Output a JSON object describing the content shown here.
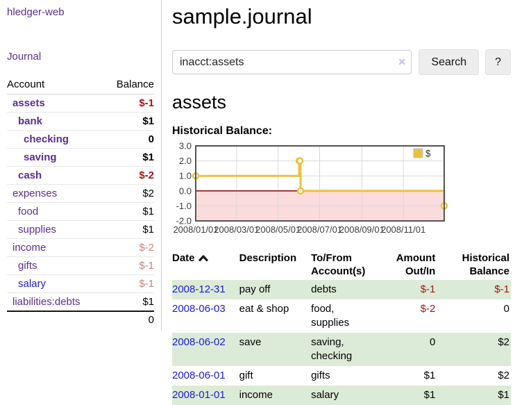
{
  "app": {
    "brand": "hledger-web",
    "nav_journal": "Journal"
  },
  "colors": {
    "link_purple": "#5b2d90",
    "link_blue": "#1b1bd1",
    "negative_strong": "#a01616",
    "negative_soft": "#c08585",
    "row_stripe_green": "#dcebd7",
    "series_gold": "#e8c240",
    "negative_region_pink": "#fadcdc",
    "zero_line_dark_red": "#8b0000",
    "chart_border_gray": "#545454"
  },
  "sidebar": {
    "table_headers": {
      "account": "Account",
      "balance": "Balance"
    },
    "accounts": [
      {
        "name": "assets",
        "indent": 1,
        "emphasis": true,
        "link_tone": "visited",
        "balance": "$-1",
        "balance_tone": "neg-strong"
      },
      {
        "name": "bank",
        "indent": 2,
        "emphasis": true,
        "link_tone": "visited",
        "balance": "$1",
        "balance_tone": "normal"
      },
      {
        "name": "checking",
        "indent": 3,
        "emphasis": true,
        "link_tone": "visited",
        "balance": "0",
        "balance_tone": "normal"
      },
      {
        "name": "saving",
        "indent": 3,
        "emphasis": true,
        "link_tone": "visited",
        "balance": "$1",
        "balance_tone": "normal"
      },
      {
        "name": "cash",
        "indent": 2,
        "emphasis": true,
        "link_tone": "visited",
        "balance": "$-2",
        "balance_tone": "neg-strong"
      },
      {
        "name": "expenses",
        "indent": 1,
        "emphasis": false,
        "link_tone": "visited",
        "balance": "$2",
        "balance_tone": "normal"
      },
      {
        "name": "food",
        "indent": 2,
        "emphasis": false,
        "link_tone": "visited",
        "balance": "$1",
        "balance_tone": "normal"
      },
      {
        "name": "supplies",
        "indent": 2,
        "emphasis": false,
        "link_tone": "visited",
        "balance": "$1",
        "balance_tone": "normal"
      },
      {
        "name": "income",
        "indent": 1,
        "emphasis": false,
        "link_tone": "visited",
        "balance": "$-2",
        "balance_tone": "neg-soft"
      },
      {
        "name": "gifts",
        "indent": 2,
        "emphasis": false,
        "link_tone": "visited",
        "balance": "$-1",
        "balance_tone": "neg-soft"
      },
      {
        "name": "salary",
        "indent": 2,
        "emphasis": false,
        "link_tone": "unvisited",
        "balance": "$-1",
        "balance_tone": "neg-soft"
      },
      {
        "name": "liabilities:debts",
        "indent": 1,
        "emphasis": false,
        "link_tone": "visited",
        "balance": "$1",
        "balance_tone": "normal"
      }
    ],
    "total": "0"
  },
  "header": {
    "title": "sample.journal"
  },
  "search": {
    "value": "inacct:assets",
    "clear_icon": "×",
    "button": "Search",
    "help_button": "?"
  },
  "account_page": {
    "title": "assets",
    "chart_title": "Historical Balance:"
  },
  "chart_data": {
    "type": "line",
    "step": true,
    "title": "Historical Balance",
    "series": [
      {
        "name": "$",
        "color": "#e8c240",
        "points": [
          [
            "2008-01-01",
            1
          ],
          [
            "2008-06-01",
            2
          ],
          [
            "2008-06-02",
            2
          ],
          [
            "2008-06-03",
            0
          ],
          [
            "2008-12-31",
            -1
          ]
        ]
      }
    ],
    "xlim": [
      "2008-01-01",
      "2008-12-31"
    ],
    "ylim": [
      -2,
      3
    ],
    "x_ticks": [
      "2008/01/01",
      "2008/03/01",
      "2008/05/01",
      "2008/07/01",
      "2008/09/01",
      "2008/11/01"
    ],
    "y_ticks": [
      3.0,
      2.0,
      1.0,
      0.0,
      -1.0,
      -2.0
    ],
    "grid": true,
    "legend": {
      "label": "$",
      "position": "top-right"
    },
    "negative_region_color": "#fadcdc",
    "zero_line_color": "#8b0000"
  },
  "transactions": {
    "headers": {
      "date": "Date",
      "sort_icon": "chevron-up",
      "description": "Description",
      "account": "To/From Account(s)",
      "amount": "Amount Out/In",
      "balance": "Historical Balance"
    },
    "rows": [
      {
        "date": "2008-12-31",
        "description": "pay off",
        "accounts": "debts",
        "amount": "$-1",
        "amount_negative": true,
        "balance": "$-1",
        "balance_negative": true,
        "striped": true
      },
      {
        "date": "2008-06-03",
        "description": "eat & shop",
        "accounts": "food, supplies",
        "amount": "$-2",
        "amount_negative": true,
        "balance": "0",
        "balance_negative": false,
        "striped": false
      },
      {
        "date": "2008-06-02",
        "description": "save",
        "accounts": "saving, checking",
        "amount": "0",
        "amount_negative": false,
        "balance": "$2",
        "balance_negative": false,
        "striped": true
      },
      {
        "date": "2008-06-01",
        "description": "gift",
        "accounts": "gifts",
        "amount": "$1",
        "amount_negative": false,
        "balance": "$2",
        "balance_negative": false,
        "striped": false
      },
      {
        "date": "2008-01-01",
        "description": "income",
        "accounts": "salary",
        "amount": "$1",
        "amount_negative": false,
        "balance": "$1",
        "balance_negative": false,
        "striped": true
      }
    ]
  }
}
